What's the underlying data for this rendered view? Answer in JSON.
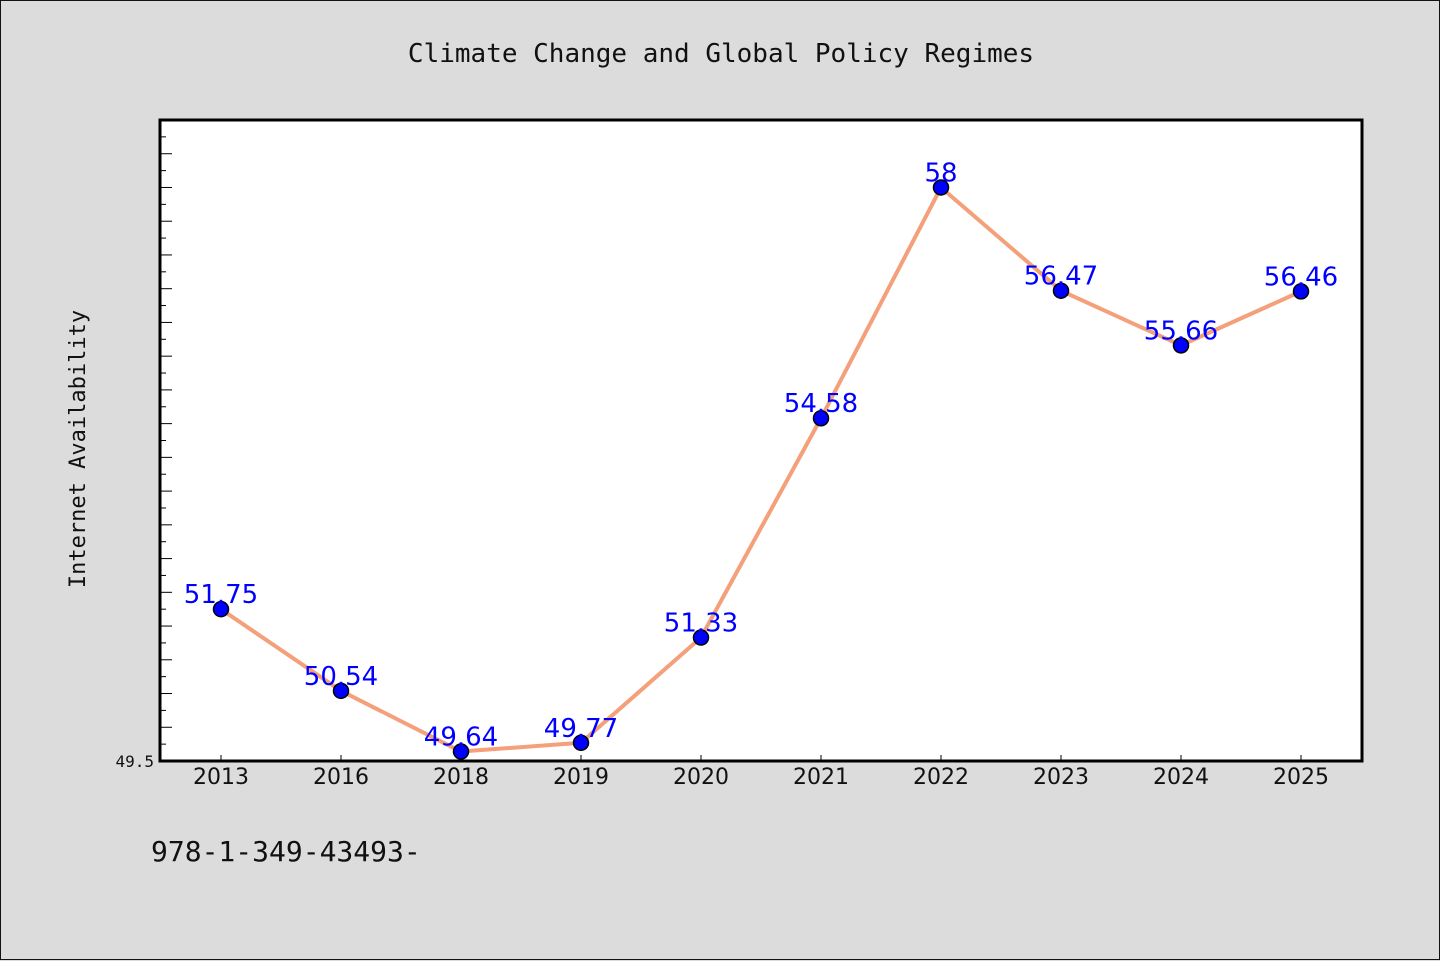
{
  "chart_data": {
    "type": "line",
    "title": "Climate Change and Global Policy Regimes",
    "xlabel": "",
    "ylabel": "Internet Availability",
    "categories": [
      "2013",
      "2016",
      "2018",
      "2019",
      "2020",
      "2021",
      "2022",
      "2023",
      "2024",
      "2025"
    ],
    "series": [
      {
        "values": [
          51.75,
          50.54,
          49.64,
          49.77,
          51.33,
          54.58,
          58,
          56.47,
          55.66,
          56.46
        ],
        "labels": [
          "51.75",
          "50.54",
          "49.64",
          "49.77",
          "51.33",
          "54.58",
          "58",
          "56.47",
          "55.66",
          "56.46"
        ]
      }
    ],
    "ylim": [
      49.5,
      59
    ],
    "yticks_labeled": [
      "49.5"
    ],
    "grid": false,
    "legend": "none",
    "colors": {
      "line": "#f4a07a",
      "marker": "#0000ff",
      "data_label": "#0000ff",
      "plot_background": "#ffffff",
      "page_background": "#dcdcdc"
    }
  },
  "footer": {
    "code": "978-1-349-43493-"
  }
}
